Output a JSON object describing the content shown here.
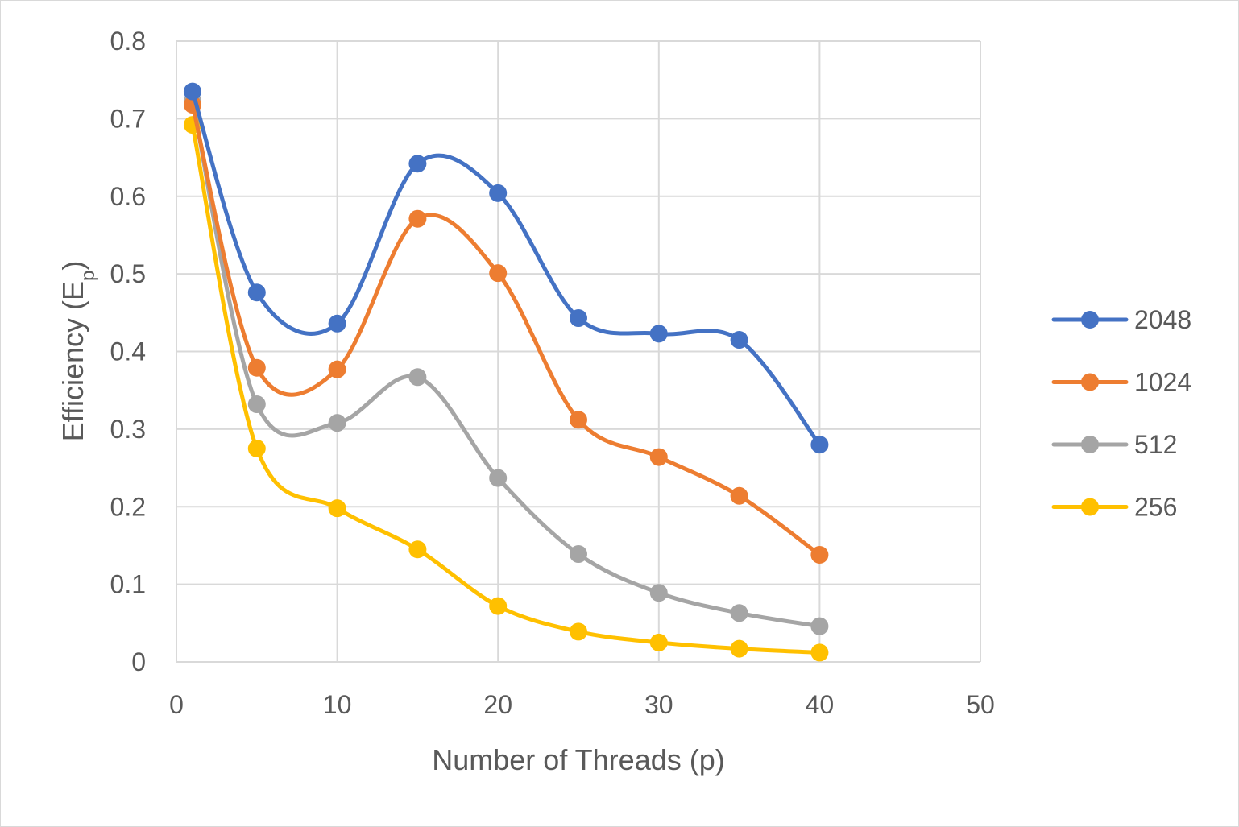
{
  "chart_data": {
    "type": "scatter",
    "xlabel": "Number of Threads (p)",
    "ylabel": "Efficiency (E",
    "ylabel_sub": "p",
    "ylabel_close": ")",
    "xlim": [
      0,
      50
    ],
    "ylim": [
      0,
      0.8
    ],
    "xticks": [
      0,
      10,
      20,
      30,
      40,
      50
    ],
    "yticks": [
      0,
      0.1,
      0.2,
      0.3,
      0.4,
      0.5,
      0.6,
      0.7,
      0.8
    ],
    "xtick_labels": [
      "0",
      "10",
      "20",
      "30",
      "40",
      "50"
    ],
    "ytick_labels": [
      "0",
      "0.1",
      "0.2",
      "0.3",
      "0.4",
      "0.5",
      "0.6",
      "0.7",
      "0.8"
    ],
    "grid": true,
    "smooth_lines": true,
    "legend_position": "right",
    "x": [
      1,
      5,
      10,
      15,
      20,
      25,
      30,
      35,
      40
    ],
    "series": [
      {
        "name": "2048",
        "color": "#4472C4",
        "values": [
          0.735,
          0.476,
          0.436,
          0.642,
          0.604,
          0.443,
          0.423,
          0.415,
          0.28
        ]
      },
      {
        "name": "1024",
        "color": "#ED7D31",
        "values": [
          0.718,
          0.379,
          0.377,
          0.571,
          0.501,
          0.312,
          0.264,
          0.214,
          0.138
        ]
      },
      {
        "name": "512",
        "color": "#A5A5A5",
        "values": [
          0.723,
          0.332,
          0.308,
          0.367,
          0.237,
          0.139,
          0.089,
          0.063,
          0.046
        ]
      },
      {
        "name": "256",
        "color": "#FFC000",
        "values": [
          0.692,
          0.275,
          0.198,
          0.145,
          0.072,
          0.039,
          0.025,
          0.017,
          0.012
        ]
      }
    ]
  }
}
